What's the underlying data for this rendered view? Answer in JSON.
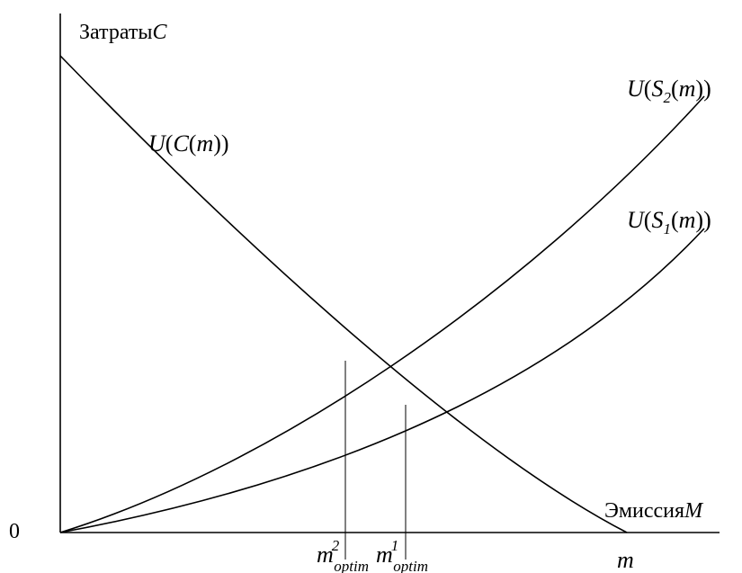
{
  "axes": {
    "y_label_word": "Затраты",
    "y_label_var": "C",
    "x_label_word": "Эмиссия",
    "x_label_var": "M",
    "origin": "0",
    "x_end": "m"
  },
  "curves": {
    "cost": {
      "u": "U",
      "open": "(",
      "c": "C",
      "open2": "(",
      "m": "m",
      "close": "))"
    },
    "s2": {
      "u": "U",
      "open": "(",
      "s": "S",
      "sub": "2",
      "open2": "(",
      "m": "m",
      "close": "))"
    },
    "s1": {
      "u": "U",
      "open": "(",
      "s": "S",
      "sub": "1",
      "open2": "(",
      "m": "m",
      "close": "))"
    }
  },
  "markers": {
    "m2": {
      "m": "m",
      "sup": "2",
      "sub": "optim"
    },
    "m1": {
      "m": "m",
      "sup": "1",
      "sub": "optim"
    }
  }
}
